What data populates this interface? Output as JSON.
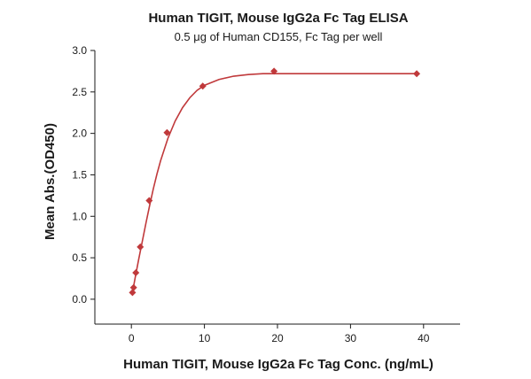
{
  "chart_data": {
    "type": "scatter",
    "title": "Human TIGIT, Mouse IgG2a Fc Tag ELISA",
    "subtitle": "0.5 μg of Human CD155, Fc Tag per well",
    "xlabel": "Human TIGIT, Mouse IgG2a Fc Tag Conc. (ng/mL)",
    "ylabel": "Mean Abs.(OD450)",
    "xlim": [
      -5,
      45
    ],
    "ylim": [
      -0.3,
      3.0
    ],
    "xticks": [
      0,
      10,
      20,
      30,
      40
    ],
    "yticks": [
      0.0,
      0.5,
      1.0,
      1.5,
      2.0,
      2.5,
      3.0
    ],
    "xtick_labels": [
      "0",
      "10",
      "20",
      "30",
      "40"
    ],
    "ytick_labels": [
      "0.0",
      "0.5",
      "1.0",
      "1.5",
      "2.0",
      "2.5",
      "3.0"
    ],
    "grid": false,
    "legend": "none",
    "color": "#c0393b",
    "marker": "diamond",
    "x": [
      0.15,
      0.3,
      0.61,
      1.22,
      2.44,
      4.88,
      9.77,
      19.53,
      39.06
    ],
    "y": [
      0.08,
      0.14,
      0.32,
      0.63,
      1.19,
      2.01,
      2.57,
      2.75,
      2.72
    ],
    "fit_curve": {
      "x": [
        0.15,
        0.5,
        1,
        1.5,
        2,
        2.5,
        3,
        3.5,
        4,
        5,
        6,
        7,
        8,
        9,
        10,
        12,
        14,
        16,
        18,
        20,
        22,
        25,
        28,
        30,
        33,
        36,
        39.06
      ],
      "y": [
        0.08,
        0.25,
        0.48,
        0.7,
        0.92,
        1.13,
        1.33,
        1.51,
        1.67,
        1.94,
        2.15,
        2.31,
        2.43,
        2.52,
        2.58,
        2.65,
        2.69,
        2.71,
        2.72,
        2.72,
        2.72,
        2.72,
        2.72,
        2.72,
        2.72,
        2.72,
        2.72
      ]
    }
  }
}
